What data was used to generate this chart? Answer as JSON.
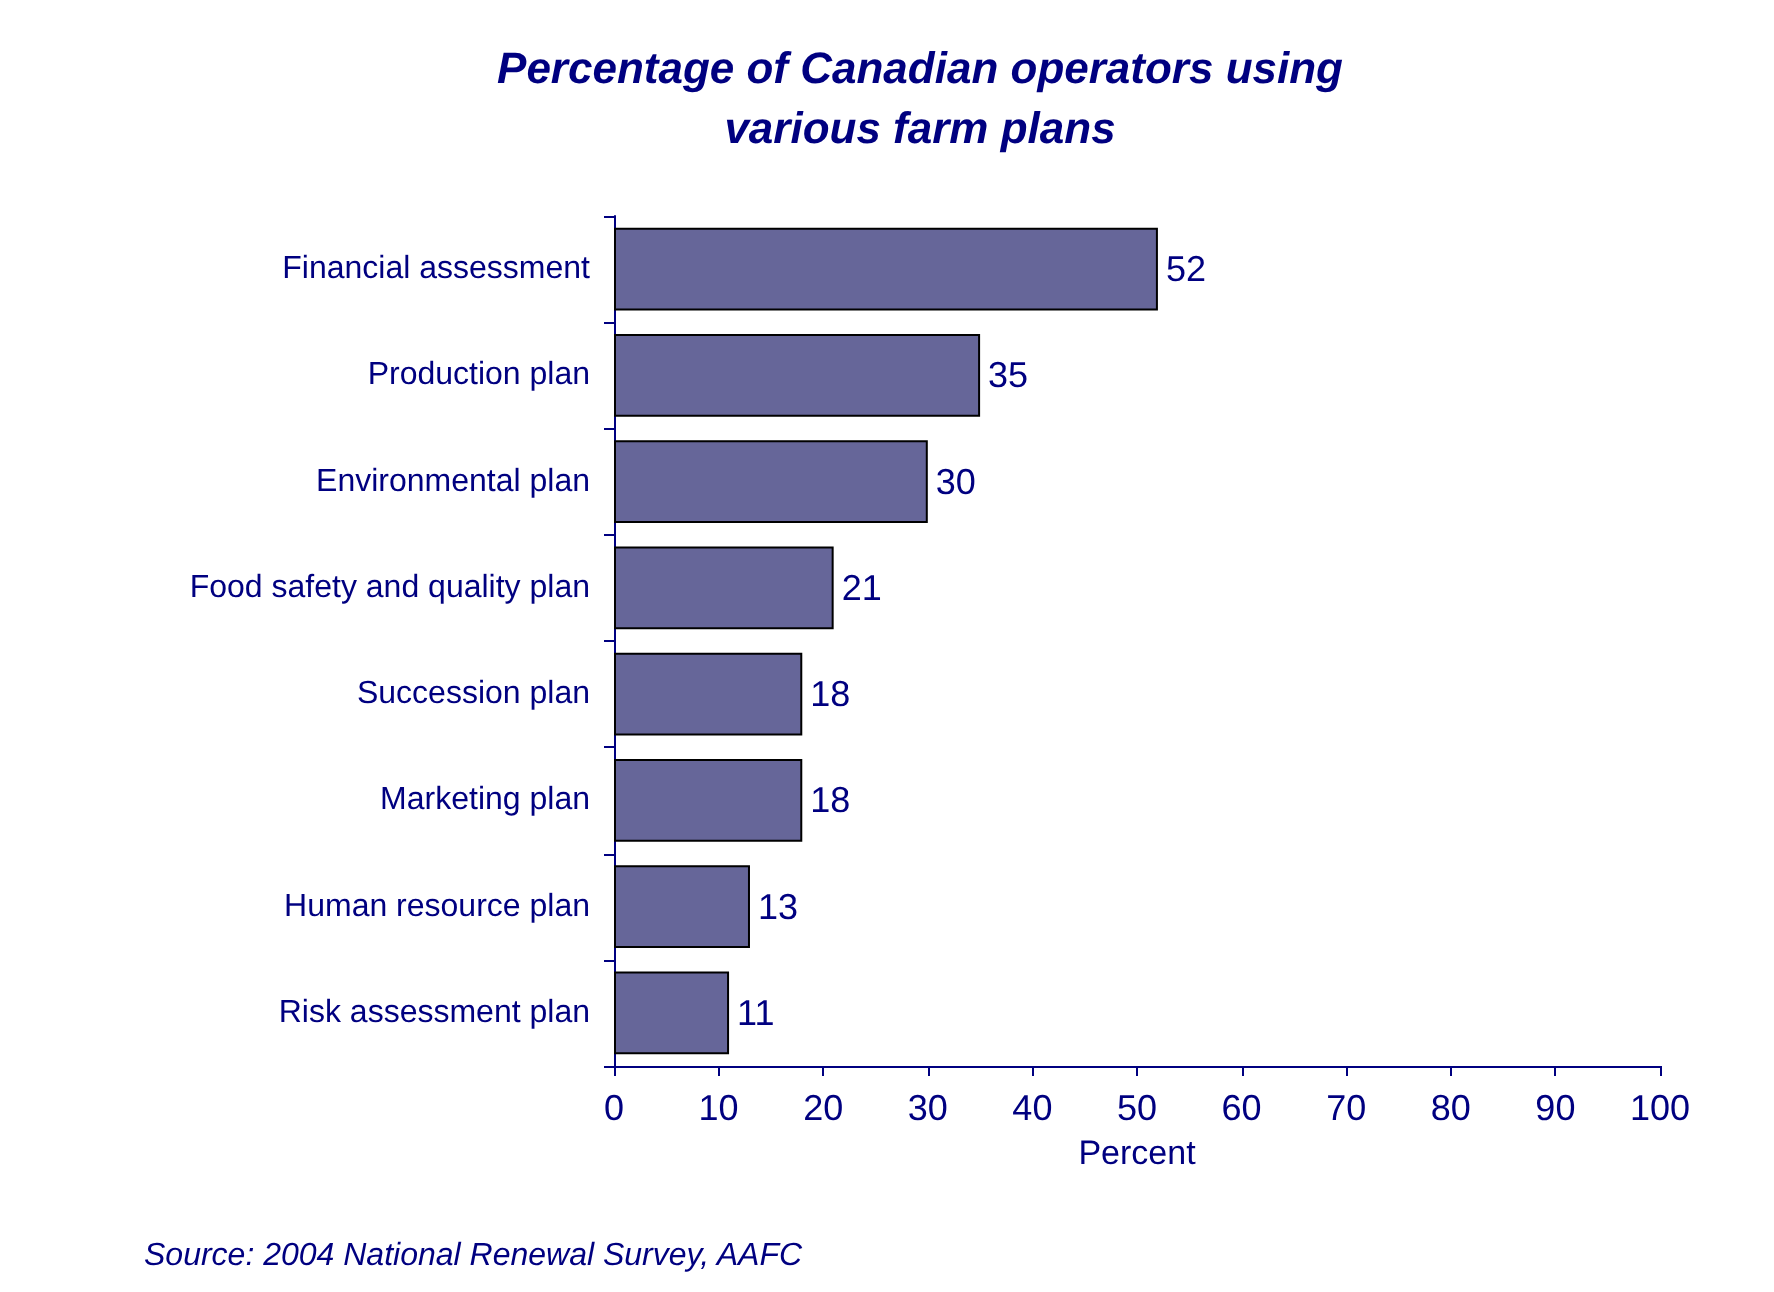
{
  "chart_data": {
    "type": "bar",
    "orientation": "horizontal",
    "title": "Percentage of Canadian operators using\nvarious farm plans",
    "xlabel": "Percent",
    "categories": [
      "Financial assessment",
      "Production plan",
      "Environmental plan",
      "Food safety and quality plan",
      "Succession plan",
      "Marketing plan",
      "Human resource plan",
      "Risk assessment plan"
    ],
    "values": [
      52,
      35,
      30,
      21,
      18,
      18,
      13,
      11
    ],
    "color": "#666699",
    "xlim": [
      0,
      100
    ],
    "xticks": [
      0,
      10,
      20,
      30,
      40,
      50,
      60,
      70,
      80,
      90,
      100
    ],
    "data_labels": true,
    "annotations": [
      "Source: 2004 National Renewal Survey, AAFC"
    ]
  }
}
